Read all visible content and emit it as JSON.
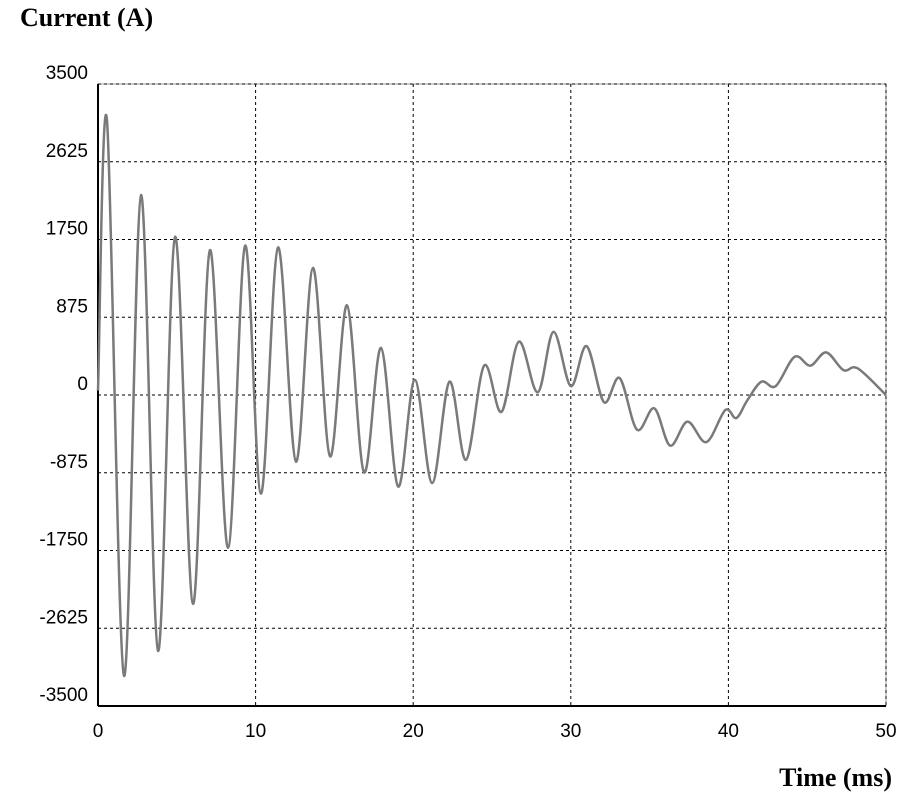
{
  "chart_data": {
    "type": "line",
    "title": "Current (A)",
    "x_label": "Time (ms)",
    "x": [
      0,
      0.57,
      1.65,
      2.73,
      3.81,
      4.89,
      6.03,
      7.1,
      8.25,
      9.33,
      10.34,
      11.42,
      12.56,
      13.64,
      14.72,
      15.8,
      16.88,
      17.96,
      19.04,
      20.1,
      21.2,
      22.3,
      23.35,
      24.5,
      25.6,
      26.7,
      27.9,
      28.9,
      30.0,
      31.0,
      32.1,
      33.1,
      34.2,
      35.3,
      36.3,
      37.4,
      38.6,
      39.8,
      40.5,
      41.2,
      42.1,
      43.0,
      44.2,
      45.2,
      46.2,
      47.3,
      48.2,
      50
    ],
    "values": [
      50,
      3090,
      -3160,
      2250,
      -2880,
      1780,
      -2350,
      1630,
      -1720,
      1680,
      -1110,
      1660,
      -750,
      1430,
      -690,
      1010,
      -870,
      530,
      -1030,
      170,
      -990,
      150,
      -730,
      330,
      -190,
      600,
      30,
      710,
      100,
      550,
      -80,
      190,
      -390,
      -150,
      -570,
      -300,
      -530,
      -170,
      -260,
      -60,
      150,
      100,
      430,
      330,
      480,
      280,
      300,
      0
    ],
    "color": "#7a7a7a",
    "xlim": [
      0,
      50
    ],
    "xticks": [
      0,
      10,
      20,
      30,
      40,
      50
    ],
    "ylim": [
      -3500,
      3500
    ],
    "yticks": [
      3500,
      2625,
      1750,
      875,
      0,
      -875,
      -1750,
      -2625,
      -3500
    ],
    "grid": true
  }
}
